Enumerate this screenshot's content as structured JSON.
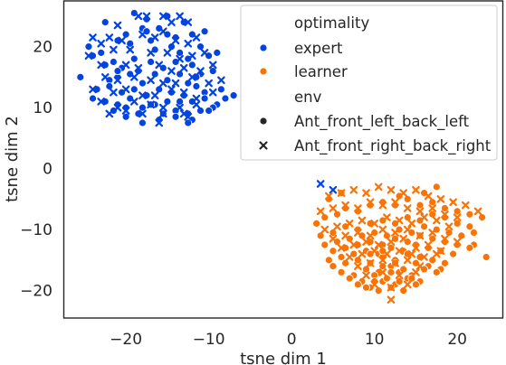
{
  "chart_data": {
    "type": "scatter",
    "xlabel": "tsne dim 1",
    "ylabel": "tsne dim 2",
    "xlim": [
      -27.5,
      25.5
    ],
    "ylim": [
      -24.5,
      27.5
    ],
    "x_ticks": [
      -20,
      -10,
      0,
      10,
      20
    ],
    "y_ticks": [
      -20,
      -10,
      0,
      10,
      20
    ],
    "x_tick_labels": [
      "−20",
      "−10",
      "0",
      "10",
      "20"
    ],
    "y_tick_labels": [
      "−20",
      "−10",
      "0",
      "10",
      "20"
    ],
    "grid": false,
    "legend": {
      "placement": "top-right",
      "hue_title": "optimality",
      "hue_entries": [
        {
          "label": "expert",
          "color": "#0343df"
        },
        {
          "label": "learner",
          "color": "#f97306"
        }
      ],
      "style_title": "env",
      "style_entries": [
        {
          "label": "Ant_front_left_back_left",
          "marker": "circle"
        },
        {
          "label": "Ant_front_right_back_right",
          "marker": "x"
        }
      ]
    },
    "series": [
      {
        "optimality": "expert",
        "env": "Ant_front_left_back_left",
        "color": "#0343df",
        "marker": "circle",
        "x": [
          -25.5,
          -24.5,
          -22.5,
          -19,
          -17.5,
          -16,
          -13,
          -12,
          -10.5,
          -11,
          -24,
          -23,
          -21,
          -20,
          -19.5,
          -18,
          -17,
          -16.5,
          -15,
          -14.5,
          -14,
          -13.5,
          -12.5,
          -10,
          -9,
          -22.5,
          -21.5,
          -20.5,
          -19,
          -18.5,
          -17,
          -15.5,
          -14,
          -12,
          -11,
          -22,
          -21,
          -19.5,
          -18,
          -16.5,
          -15,
          -13.5,
          -12.5,
          -11.5,
          -9.5,
          -23.5,
          -22,
          -20.5,
          -19,
          -17.5,
          -16,
          -14.5,
          -13,
          -11.5,
          -10.5,
          -8.5,
          -7,
          -24,
          -22.5,
          -21,
          -19.5,
          -18,
          -16.5,
          -15,
          -13.5,
          -12,
          -10.5,
          -9,
          -8,
          -21.5,
          -20,
          -18.5,
          -17,
          -15.5,
          -14,
          -12.5,
          -11,
          -9.5,
          -20,
          -18,
          -16,
          -14,
          -12,
          -10,
          -13.5,
          -11.5,
          -21,
          -17.5,
          -15,
          -12.5
        ],
        "y": [
          15,
          20,
          24,
          25.5,
          24.5,
          23,
          24,
          22,
          22.5,
          20,
          18.5,
          19,
          21,
          22,
          20.5,
          23,
          21,
          19.5,
          22,
          20,
          21.5,
          19,
          18,
          18.5,
          19,
          17,
          17.5,
          16.5,
          18,
          16,
          17.5,
          16.5,
          17.5,
          17,
          15.5,
          14.5,
          15,
          15.5,
          14,
          15.5,
          14.5,
          15.5,
          14,
          15,
          16,
          13,
          13.5,
          12.5,
          13,
          12,
          13,
          12.5,
          12,
          13.5,
          12.5,
          13,
          12,
          11.5,
          11,
          10.5,
          11.5,
          10,
          10.5,
          11,
          10.5,
          11,
          11.5,
          10.5,
          11.5,
          9.5,
          10,
          9,
          10.5,
          9,
          9.5,
          9,
          9.5,
          10,
          8.5,
          7.5,
          8,
          8.5,
          8,
          9.5,
          11,
          13.5,
          16,
          22.5,
          25,
          7.5
        ]
      },
      {
        "optimality": "expert",
        "env": "Ant_front_right_back_right",
        "color": "#0343df",
        "marker": "x",
        "x": [
          -24,
          -21,
          -18.5,
          -17.5,
          -15.5,
          -14.5,
          -13.5,
          -12.5,
          -23,
          -22,
          -20.5,
          -18,
          -16.5,
          -15.5,
          -14,
          -12.5,
          -11.5,
          -24.5,
          -21.5,
          -19.5,
          -17,
          -15,
          -13.5,
          -12,
          -10.5,
          -23,
          -20,
          -18.5,
          -16,
          -14.5,
          -13,
          -11,
          -9.5,
          -22.5,
          -21,
          -19,
          -17,
          -15.5,
          -14,
          -12,
          -10,
          -8.5,
          -24,
          -21.5,
          -20,
          -18,
          -16.5,
          -14.5,
          -13,
          -11.5,
          -9.5,
          -23,
          -21,
          -19,
          -17,
          -15.5,
          -13.5,
          -11.5,
          -22,
          -20,
          -18,
          -15.5,
          -13,
          -16,
          -12.5,
          3.5,
          5
        ],
        "y": [
          21.5,
          23.5,
          25,
          25,
          25,
          24,
          25,
          24,
          20.5,
          21.5,
          21,
          22,
          21.5,
          22.5,
          21,
          20.5,
          21.5,
          18.5,
          19.5,
          19.5,
          19,
          19,
          18,
          18.5,
          19,
          17,
          17,
          16.5,
          17,
          16,
          16.5,
          16,
          17,
          15,
          14.5,
          15,
          14.5,
          14,
          14,
          15,
          14,
          14.5,
          13,
          12.5,
          13,
          12,
          12,
          13,
          12.5,
          11.5,
          12.5,
          11,
          10,
          11,
          10.5,
          10,
          10,
          10.5,
          9,
          9.5,
          9,
          9,
          9,
          7.5,
          8.5,
          -2.5,
          -3.5
        ]
      },
      {
        "optimality": "learner",
        "env": "Ant_front_left_back_left",
        "color": "#f97306",
        "marker": "circle",
        "x": [
          3,
          4,
          5.5,
          6.5,
          8,
          9.5,
          11,
          12.5,
          14,
          15.5,
          17,
          18.5,
          20,
          21.5,
          23,
          3.5,
          5,
          6.5,
          8,
          9.5,
          11,
          12.5,
          14,
          15.5,
          17,
          18.5,
          20,
          21.5,
          4,
          5.5,
          7,
          8.5,
          10,
          11.5,
          13,
          14.5,
          16,
          17.5,
          19,
          20.5,
          22,
          5,
          6.5,
          8,
          9.5,
          11,
          12.5,
          14,
          15.5,
          17,
          18.5,
          20,
          21.5,
          4.5,
          6,
          7.5,
          9,
          10.5,
          12,
          13.5,
          15,
          16.5,
          18,
          19.5,
          5,
          6.5,
          8,
          9.5,
          11,
          12.5,
          14,
          15.5,
          17,
          18.5,
          6,
          7.5,
          9,
          10.5,
          12,
          13.5,
          15,
          16.5,
          18,
          7,
          8.5,
          10,
          11.5,
          13,
          14.5,
          16,
          17.5,
          8,
          9.5,
          11,
          12.5,
          14,
          15.5,
          9,
          10.5,
          12,
          13.5,
          15,
          10,
          11.5,
          13,
          14.5,
          12,
          13.5,
          11,
          12.5,
          9.5,
          11,
          16,
          22,
          23.5,
          17.5,
          13,
          6,
          4.5
        ],
        "y": [
          -9,
          -8,
          -7.5,
          -6.5,
          -7,
          -6,
          -5.5,
          -6,
          -5,
          -6,
          -5.5,
          -6.5,
          -7,
          -7.5,
          -8,
          -11,
          -10.5,
          -9.5,
          -10,
          -9,
          -8.5,
          -9,
          -8,
          -8.5,
          -7.5,
          -8,
          -9,
          -9.5,
          -12.5,
          -12,
          -11.5,
          -11,
          -10.5,
          -11,
          -10,
          -10.5,
          -9.5,
          -10,
          -10.5,
          -11,
          -12.5,
          -13.5,
          -13,
          -12.5,
          -12,
          -12.5,
          -11.5,
          -12,
          -11,
          -11.5,
          -12,
          -12.5,
          -13,
          -15,
          -14.5,
          -14,
          -13.5,
          -14,
          -13,
          -13.5,
          -12.5,
          -13,
          -13.5,
          -14,
          -16,
          -15.5,
          -15,
          -15.5,
          -14.5,
          -15,
          -14,
          -14.5,
          -15,
          -15.5,
          -17,
          -17.5,
          -16.5,
          -17,
          -16,
          -16.5,
          -15.5,
          -16,
          -16.5,
          -18,
          -18.5,
          -17.5,
          -18,
          -17,
          -17.5,
          -16.5,
          -17,
          -19,
          -19.5,
          -18.5,
          -19,
          -18,
          -18.5,
          -19.5,
          -20,
          -19.5,
          -20,
          -19,
          -18.5,
          -18,
          -18.5,
          -18,
          -17,
          -16.5,
          -16,
          -15.5,
          -14,
          -13.5,
          -4,
          -10.5,
          -14.5,
          -3,
          -4.5,
          -4,
          -5
        ]
      },
      {
        "optimality": "learner",
        "env": "Ant_front_right_back_right",
        "color": "#f97306",
        "marker": "x",
        "x": [
          4.5,
          6,
          7.5,
          9,
          10.5,
          12,
          13.5,
          15,
          16.5,
          18,
          19.5,
          21,
          22.5,
          3.5,
          5,
          6.5,
          8,
          9.5,
          11,
          12.5,
          14,
          15.5,
          17,
          18.5,
          20,
          4,
          5.5,
          7,
          8.5,
          10,
          11.5,
          13,
          14.5,
          16,
          17.5,
          19,
          5,
          6.5,
          8,
          9.5,
          11,
          12.5,
          14,
          15.5,
          17,
          18.5,
          20,
          6,
          7.5,
          9,
          10.5,
          12,
          13.5,
          15,
          16.5,
          18,
          7,
          8.5,
          10,
          11.5,
          13,
          14.5,
          16,
          17.5,
          8,
          9.5,
          11,
          12.5,
          14,
          15.5,
          9,
          11,
          13,
          15,
          10,
          12,
          14,
          12
        ],
        "y": [
          -4.5,
          -4,
          -3.5,
          -4,
          -3,
          -3.5,
          -4,
          -3.5,
          -4.5,
          -5,
          -5.5,
          -6,
          -7,
          -7,
          -6.5,
          -6,
          -6.5,
          -5.5,
          -6,
          -5.5,
          -6.5,
          -7,
          -6.5,
          -7.5,
          -8,
          -10,
          -9.5,
          -9,
          -8.5,
          -9,
          -8,
          -8.5,
          -9,
          -8,
          -8.5,
          -9.5,
          -11.5,
          -11,
          -10.5,
          -11,
          -10,
          -10.5,
          -10,
          -11,
          -10.5,
          -11.5,
          -12,
          -13,
          -12.5,
          -12,
          -12.5,
          -12,
          -11.5,
          -13,
          -12.5,
          -13.5,
          -14.5,
          -14,
          -13.5,
          -14,
          -13.5,
          -14,
          -14.5,
          -14,
          -16,
          -15.5,
          -15,
          -15.5,
          -15,
          -16,
          -17.5,
          -17,
          -17.5,
          -17,
          -19,
          -19.5,
          -19,
          -21.5
        ]
      }
    ]
  }
}
